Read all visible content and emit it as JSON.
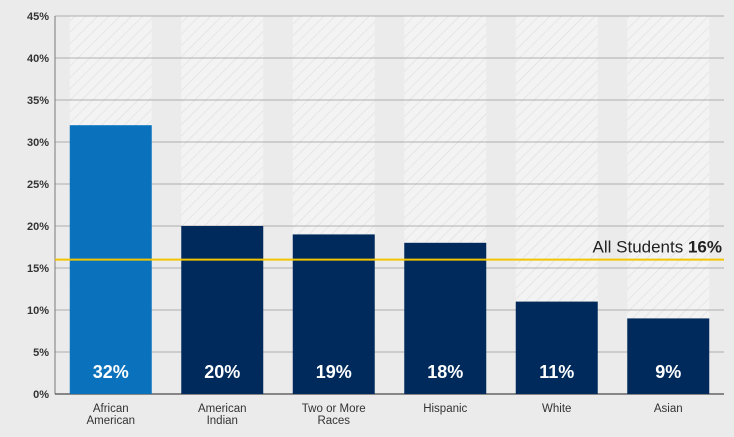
{
  "chart_data": {
    "type": "bar",
    "categories": [
      [
        "African",
        "American"
      ],
      [
        "American",
        "Indian"
      ],
      [
        "Two or More",
        "Races"
      ],
      [
        "Hispanic"
      ],
      [
        "White"
      ],
      [
        "Asian"
      ]
    ],
    "values": [
      32,
      20,
      19,
      18,
      11,
      9
    ],
    "value_labels": [
      "32%",
      "20%",
      "19%",
      "18%",
      "11%",
      "9%"
    ],
    "ylim": [
      0,
      45
    ],
    "yticks": [
      0,
      5,
      10,
      15,
      20,
      25,
      30,
      35,
      40,
      45
    ],
    "ytick_labels": [
      "0%",
      "5%",
      "10%",
      "15%",
      "20%",
      "25%",
      "30%",
      "35%",
      "40%",
      "45%"
    ],
    "grid": true,
    "reference_line": {
      "value": 16,
      "label": "All Students",
      "value_label": "16%"
    },
    "colors": {
      "highlight_bar": "#0a72bd",
      "bar": "#002a5c",
      "reference_line": "#f2c500",
      "background": "#ebebeb",
      "column_background": "#f4f4f4",
      "grid": "#9a9a9a"
    },
    "highlight_index": 0
  }
}
